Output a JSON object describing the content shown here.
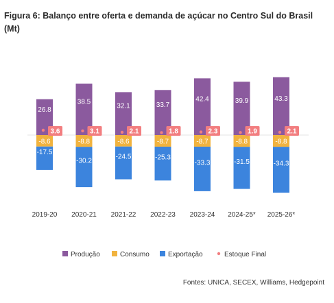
{
  "title": "Figura 6: Balanço entre oferta e demanda de açúcar no Centro Sul do Brasil (Mt)",
  "source": "Fontes: UNICA, SECEX, Williams, Hedgepoint",
  "colors": {
    "producao": "#8b5a9e",
    "consumo": "#f1b33f",
    "exportacao": "#3c84dd",
    "estoque": "#f27e80"
  },
  "chart_data": {
    "type": "bar",
    "title": "Figura 6: Balanço entre oferta e demanda de açúcar no Centro Sul do Brasil (Mt)",
    "categories": [
      "2019-20",
      "2020-21",
      "2021-22",
      "2022-23",
      "2023-24",
      "2024-25*",
      "2025-26*"
    ],
    "series": [
      {
        "name": "Produção",
        "values": [
          26.8,
          38.5,
          32.1,
          33.7,
          42.4,
          39.9,
          43.3
        ]
      },
      {
        "name": "Consumo",
        "values": [
          -8.6,
          -8.8,
          -8.6,
          -8.7,
          -8.7,
          -8.8,
          -8.8
        ]
      },
      {
        "name": "Exportação",
        "values": [
          -17.5,
          -30.2,
          -24.5,
          -25.3,
          -33.3,
          -31.5,
          -34.3
        ]
      },
      {
        "name": "Estoque Final",
        "values": [
          3.6,
          3.1,
          2.1,
          1.8,
          2.3,
          1.9,
          2.1
        ]
      }
    ],
    "legend_position": "bottom",
    "grid": false
  }
}
